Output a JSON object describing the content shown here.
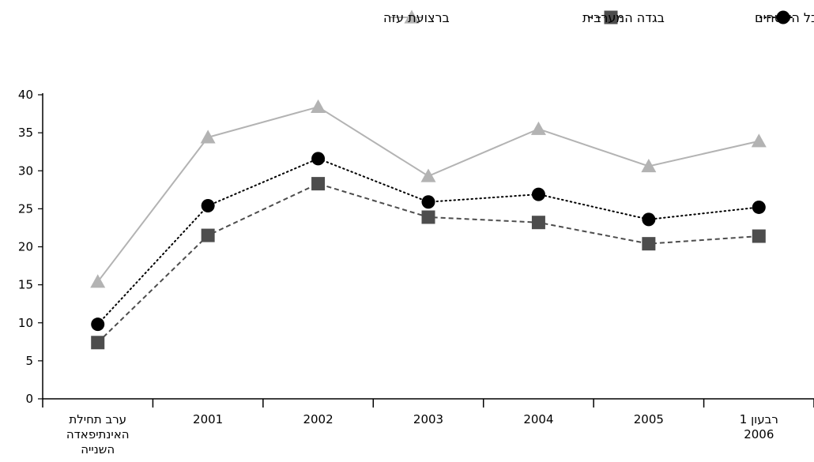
{
  "chart_data": {
    "type": "line",
    "categories": [
      [
        "ערב תחילת",
        "האינתיפאדה",
        "השנייה"
      ],
      [
        "2001"
      ],
      [
        "2002"
      ],
      [
        "2003"
      ],
      [
        "2004"
      ],
      [
        "2005"
      ],
      [
        "רבעון 1",
        "2006"
      ]
    ],
    "ylim": [
      0,
      40
    ],
    "yticks": [
      "0",
      "5",
      "10",
      "15",
      "20",
      "25",
      "30",
      "35",
      "40"
    ],
    "legend_position": "top",
    "grid": false,
    "series": [
      {
        "name": "בכל השטחים",
        "values": [
          9.8,
          25.4,
          31.6,
          25.9,
          26.9,
          23.6,
          25.2
        ],
        "color": "#000000",
        "marker": "circle",
        "line": "dotted"
      },
      {
        "name": "בגדה המערבית",
        "values": [
          7.4,
          21.5,
          28.3,
          23.9,
          23.2,
          20.4,
          21.4
        ],
        "color": "#4d4d4d",
        "marker": "square",
        "line": "dashed"
      },
      {
        "name": "ברצועת עזה",
        "values": [
          15.4,
          34.4,
          38.4,
          29.3,
          35.5,
          30.6,
          33.9
        ],
        "color": "#b3b3b3",
        "marker": "triangle",
        "line": "solid"
      }
    ]
  }
}
